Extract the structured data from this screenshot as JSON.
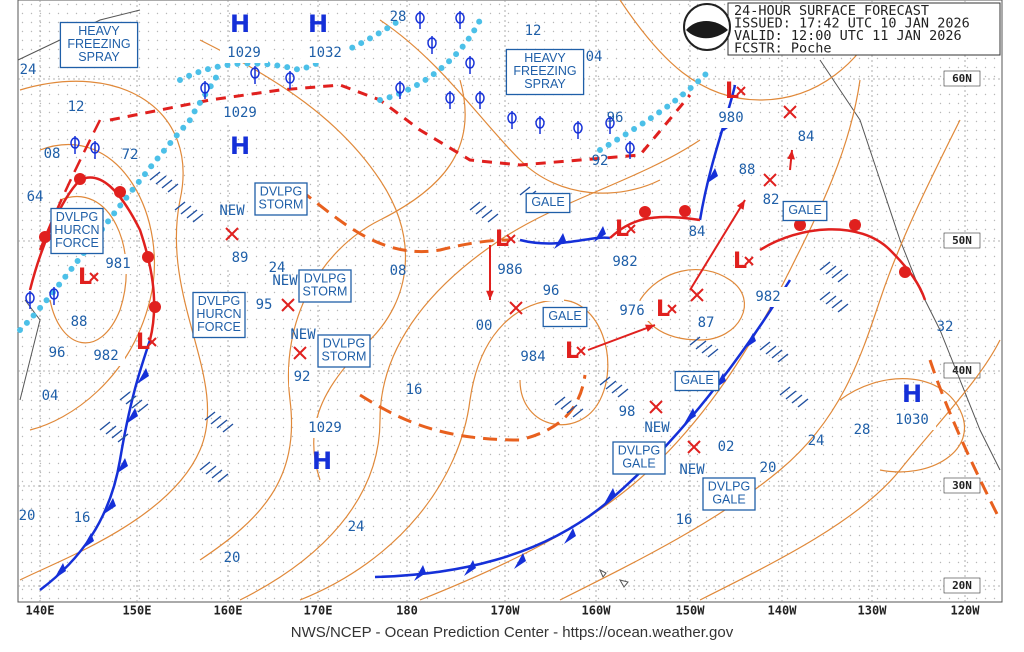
{
  "header": {
    "lines": [
      "24-HOUR SURFACE FORECAST",
      "ISSUED: 17:42 UTC 10 JAN 2026",
      "VALID:  12:00 UTC 11 JAN 2026",
      "FCSTR:  Poche"
    ]
  },
  "footer": "NWS/NCEP - Ocean Prediction Center - https://ocean.weather.gov",
  "longitudes": [
    "140E",
    "150E",
    "160E",
    "170E",
    "180",
    "170W",
    "160W",
    "150W",
    "140W",
    "130W",
    "120W"
  ],
  "latitudes": [
    "60N",
    "50N",
    "40N",
    "30N",
    "20N"
  ],
  "highs": [
    {
      "symbol": "H",
      "pressure": 1029
    },
    {
      "symbol": "H",
      "pressure": 1032
    },
    {
      "symbol": "H",
      "pressure": 1029
    },
    {
      "symbol": "H",
      "pressure": 1029
    },
    {
      "symbol": "H",
      "pressure": 1030
    }
  ],
  "lows": [
    {
      "symbol": "L",
      "pressure": 981
    },
    {
      "symbol": "L",
      "pressure": 982
    },
    {
      "symbol": "L",
      "pressure": 986
    },
    {
      "symbol": "L",
      "pressure": 984
    },
    {
      "symbol": "L",
      "pressure": 982
    },
    {
      "symbol": "L",
      "pressure": 976
    },
    {
      "symbol": "L",
      "pressure": 982
    },
    {
      "symbol": "L",
      "pressure": 980
    }
  ],
  "new_centers": [
    "96",
    "89",
    "95",
    "92",
    "87",
    "98",
    "02",
    "84",
    "82"
  ],
  "new_labels": [
    "NEW",
    "NEW",
    "NEW",
    "NEW",
    "NEW"
  ],
  "isobar_labels": [
    "24",
    "12",
    "08",
    "64",
    "72",
    "88",
    "96",
    "04",
    "20",
    "16",
    "20",
    "24",
    "16",
    "08",
    "00",
    "28",
    "12",
    "04",
    "96",
    "92",
    "84",
    "88",
    "32",
    "28",
    "24",
    "20",
    "16",
    "24"
  ],
  "warnings": [
    {
      "lines": [
        "HEAVY",
        "FREEZING",
        "SPRAY"
      ]
    },
    {
      "lines": [
        "HEAVY",
        "FREEZING",
        "SPRAY"
      ]
    },
    {
      "lines": [
        "DVLPG",
        "HURCN",
        "FORCE"
      ]
    },
    {
      "lines": [
        "DVLPG",
        "HURCN",
        "FORCE"
      ]
    },
    {
      "lines": [
        "DVLPG",
        "STORM"
      ]
    },
    {
      "lines": [
        "DVLPG",
        "STORM"
      ]
    },
    {
      "lines": [
        "DVLPG",
        "STORM"
      ]
    },
    {
      "lines": [
        "GALE"
      ]
    },
    {
      "lines": [
        "GALE"
      ]
    },
    {
      "lines": [
        "GALE"
      ]
    },
    {
      "lines": [
        "GALE"
      ]
    },
    {
      "lines": [
        "DVLPG",
        "GALE"
      ]
    },
    {
      "lines": [
        "DVLPG",
        "GALE"
      ]
    }
  ]
}
